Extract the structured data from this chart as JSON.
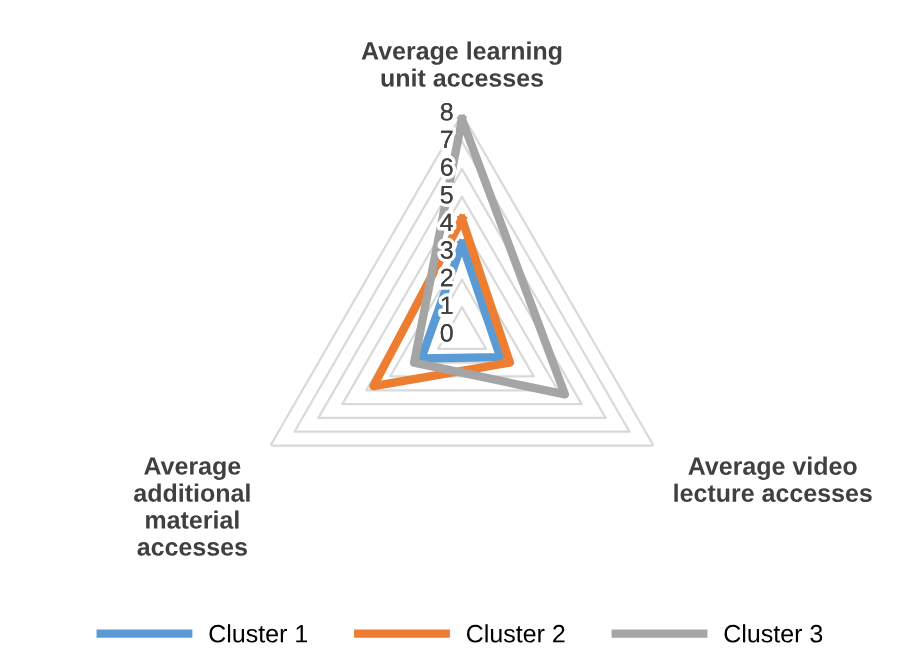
{
  "chart_data": {
    "type": "radar",
    "categories": [
      "Average learning\nunit accesses",
      "Average video\nlecture accesses",
      "Average\nadditional\nmaterial\naccesses"
    ],
    "series": [
      {
        "name": "Cluster 1",
        "color": "#5b9bd5",
        "values": [
          3.3,
          1.6,
          1.7
        ]
      },
      {
        "name": "Cluster 2",
        "color": "#ed7d31",
        "values": [
          4.2,
          2.0,
          3.7
        ]
      },
      {
        "name": "Cluster 3",
        "color": "#a5a5a5",
        "values": [
          7.8,
          4.3,
          2.0
        ]
      }
    ],
    "ylim": [
      0,
      8
    ],
    "yticks": [
      0,
      1,
      2,
      3,
      4,
      5,
      6,
      7,
      8
    ],
    "grid": true,
    "legend": "bottom",
    "marker": "none",
    "line_style": "solid"
  }
}
